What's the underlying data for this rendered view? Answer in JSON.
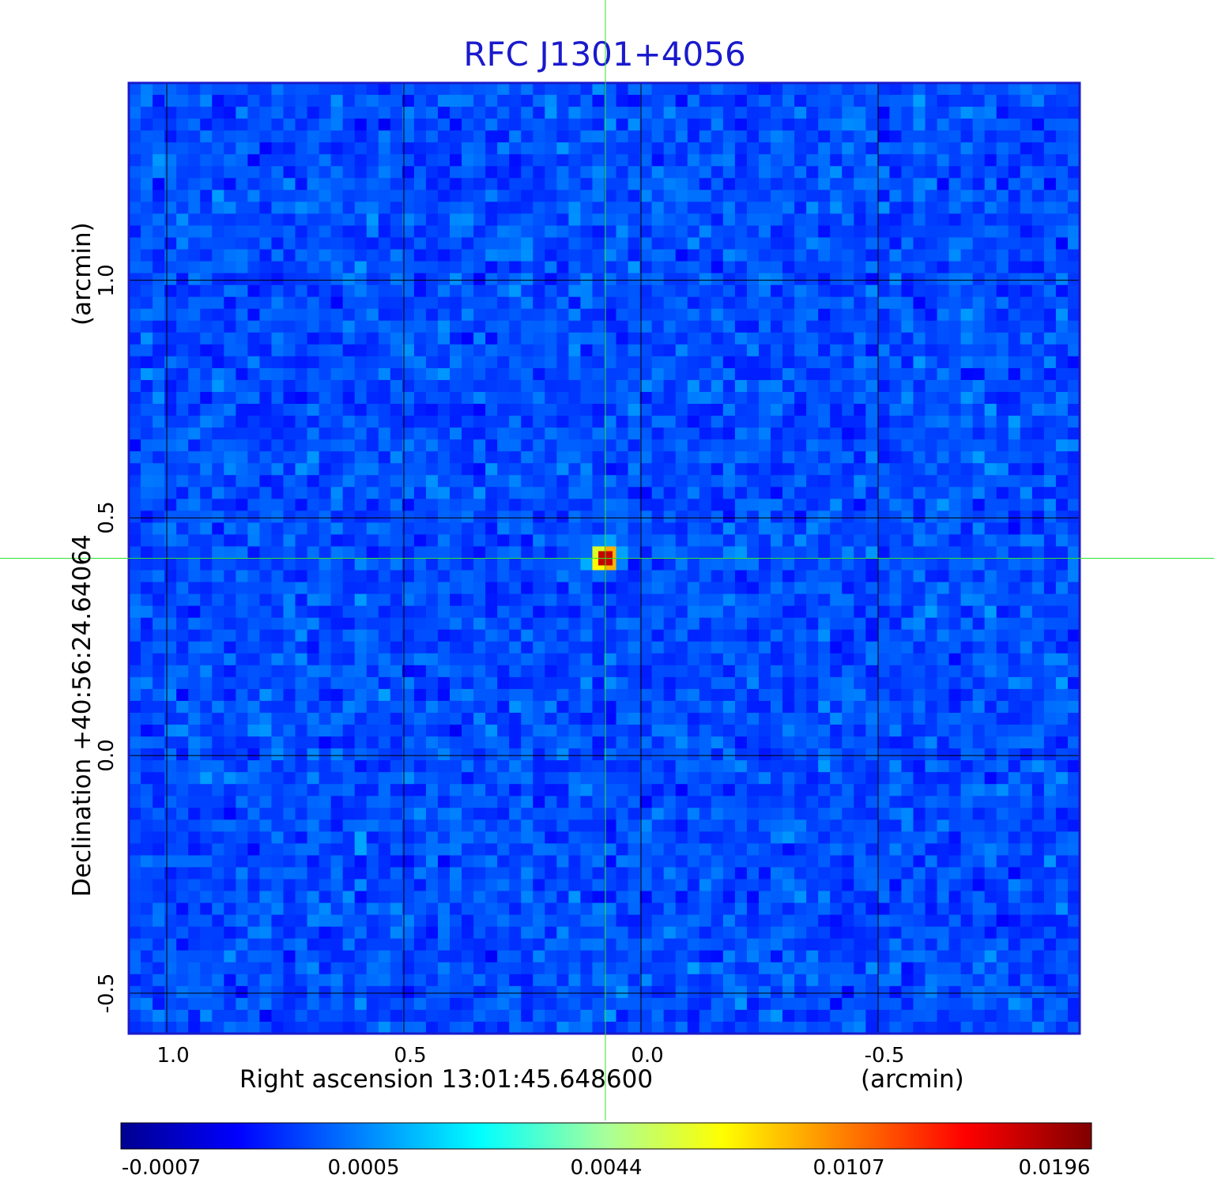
{
  "chart_data": {
    "type": "heatmap",
    "title": "RFC J1301+4056",
    "xlabel": "Right ascension  13:01:45.648600",
    "xunit": "(arcmin)",
    "ylabel": "Declination  +40:56:24.64064",
    "yunit": "(arcmin)",
    "x_ticks": [
      "1.0",
      "0.5",
      "0.0",
      "-0.5"
    ],
    "x_tick_values": [
      1.0,
      0.5,
      0.0,
      -0.5
    ],
    "y_ticks": [
      "1.0",
      "0.5",
      "0.0",
      "-0.5"
    ],
    "y_tick_values": [
      1.0,
      0.5,
      0.0,
      -0.5
    ],
    "xlim": [
      1.08,
      -0.925
    ],
    "ylim": [
      -0.585,
      1.415
    ],
    "grid": true,
    "crosshair": {
      "x": 0.075,
      "y": 0.415,
      "color": "#2ee62e"
    },
    "source": {
      "x": 0.075,
      "y": 0.415,
      "peak": 0.0196
    },
    "colormap": "jet",
    "colorbar_ticks": [
      "-0.0007",
      "0.0005",
      "0.0044",
      "0.0107",
      "0.0196"
    ],
    "colorbar_tick_values": [
      -0.0007,
      0.0005,
      0.0044,
      0.0107,
      0.0196
    ]
  }
}
